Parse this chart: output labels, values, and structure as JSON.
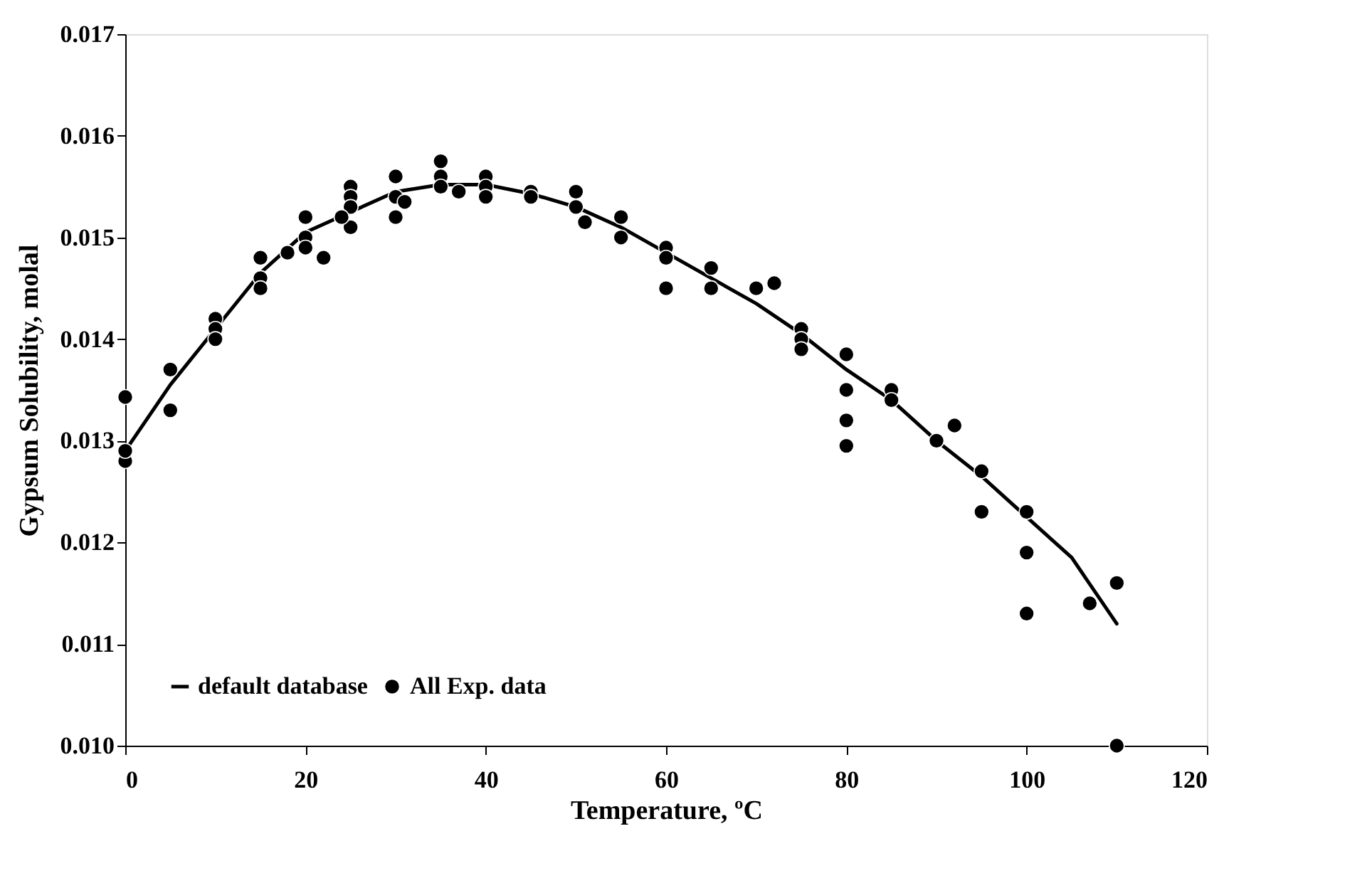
{
  "chart_data": {
    "type": "scatter",
    "xlabel": "Temperature, ºC",
    "ylabel": "Gypsum Solubility, molal",
    "xlim": [
      0,
      120
    ],
    "xticks": [
      0,
      20,
      40,
      60,
      80,
      100,
      120
    ],
    "ylim": [
      0.01,
      0.017
    ],
    "yticks": [
      {
        "value": 0.01,
        "label": "0.010"
      },
      {
        "value": 0.011,
        "label": "0.011"
      },
      {
        "value": 0.012,
        "label": "0.012"
      },
      {
        "value": 0.013,
        "label": "0.013"
      },
      {
        "value": 0.014,
        "label": "0.014"
      },
      {
        "value": 0.015,
        "label": "0.015"
      },
      {
        "value": 0.016,
        "label": "0.016"
      },
      {
        "value": 0.017,
        "label": "0.017"
      }
    ],
    "grid": false,
    "legend": "bottom left",
    "series": [
      {
        "name": "default database",
        "type": "line",
        "color": "#000000",
        "line_style": "solid",
        "marker": "none",
        "x": [
          0,
          5,
          10,
          15,
          20,
          25,
          30,
          35,
          40,
          45,
          50,
          55,
          60,
          65,
          70,
          75,
          80,
          85,
          90,
          95,
          100,
          105,
          110
        ],
        "values": [
          0.0129,
          0.01355,
          0.0141,
          0.01465,
          0.01505,
          0.01525,
          0.01545,
          0.01552,
          0.01552,
          0.01543,
          0.0153,
          0.0151,
          0.01485,
          0.0146,
          0.01435,
          0.01405,
          0.0137,
          0.0134,
          0.013,
          0.01265,
          0.01225,
          0.01185,
          0.0112
        ]
      },
      {
        "name": "All Exp. data",
        "color": "#000000",
        "marker": "circle",
        "x": [
          0,
          0,
          0,
          5,
          5,
          10,
          10,
          10,
          15,
          15,
          15,
          18,
          20,
          20,
          20,
          22,
          25,
          25,
          25,
          25,
          24,
          30,
          30,
          30,
          31,
          35,
          35,
          35,
          37,
          40,
          40,
          40,
          45,
          45,
          50,
          50,
          51,
          55,
          55,
          60,
          60,
          60,
          65,
          65,
          70,
          72,
          75,
          75,
          75,
          80,
          80,
          80,
          80,
          85,
          85,
          90,
          92,
          95,
          95,
          100,
          100,
          100,
          107,
          110,
          110
        ],
        "values": [
          0.01343,
          0.0128,
          0.0129,
          0.0137,
          0.0133,
          0.0142,
          0.0141,
          0.014,
          0.0148,
          0.0146,
          0.0145,
          0.01485,
          0.0152,
          0.015,
          0.0149,
          0.0148,
          0.0155,
          0.0154,
          0.0153,
          0.0151,
          0.0152,
          0.0156,
          0.0154,
          0.0152,
          0.01535,
          0.01575,
          0.0156,
          0.0155,
          0.01545,
          0.0156,
          0.0155,
          0.0154,
          0.01545,
          0.0154,
          0.01545,
          0.0153,
          0.01515,
          0.0152,
          0.015,
          0.0149,
          0.0148,
          0.0145,
          0.0147,
          0.0145,
          0.0145,
          0.01455,
          0.0141,
          0.014,
          0.0139,
          0.01385,
          0.0135,
          0.0132,
          0.01295,
          0.0135,
          0.0134,
          0.013,
          0.01315,
          0.0127,
          0.0123,
          0.0123,
          0.0119,
          0.0113,
          0.0114,
          0.0116,
          0.01
        ]
      }
    ]
  }
}
